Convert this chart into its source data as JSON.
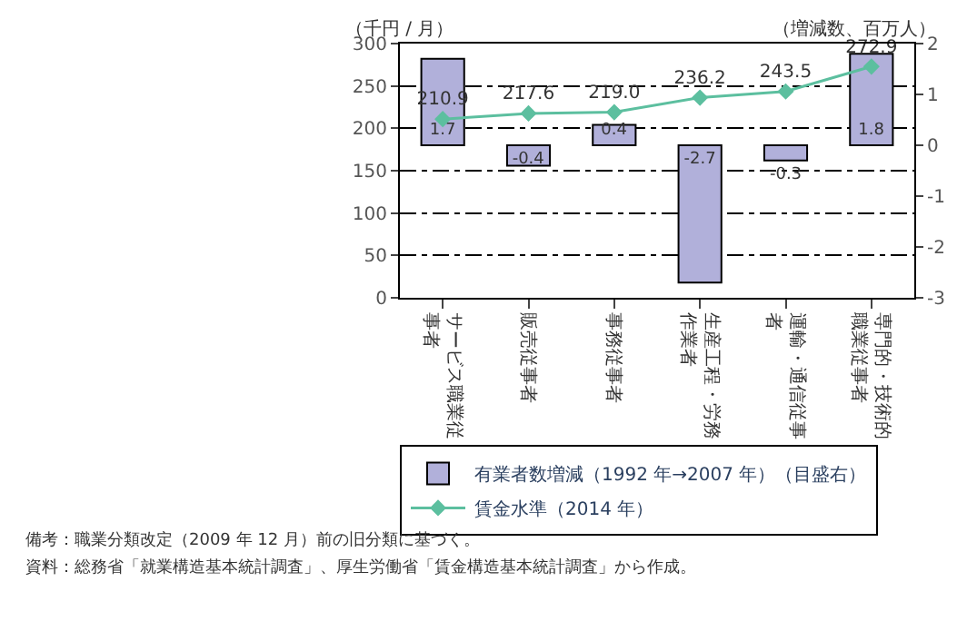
{
  "chart_data": {
    "type": "bar",
    "categories": [
      "サービス職業従事者",
      "販売従事者",
      "事務従事者",
      "生産工程・労務作業者",
      "運輸・通信従事者",
      "専門的・技術的職業従事者"
    ],
    "series": [
      {
        "name": "有業者数増減（1992 年→2007 年）（目盛右）",
        "axis": "y2",
        "color": "#b1b0da",
        "values": [
          1.7,
          -0.4,
          0.4,
          -2.7,
          -0.3,
          1.8
        ]
      },
      {
        "name": "賃金水準（2014 年）",
        "type": "line",
        "axis": "y",
        "color": "#5cbf9f",
        "marker": "diamond",
        "values": [
          210.9,
          217.6,
          219.0,
          236.2,
          243.5,
          272.9
        ],
        "value_labels": [
          "210.9",
          "217.6",
          "219.0",
          "236.2",
          "243.5",
          "272.9"
        ]
      }
    ],
    "ylabel": "（千円 / 月）",
    "y2label": "（増減数、百万人）",
    "ylim": [
      0,
      300
    ],
    "yticks": [
      0,
      50,
      100,
      150,
      200,
      250,
      300
    ],
    "y2lim": [
      -3,
      2
    ],
    "y2ticks": [
      -3,
      -2,
      -1,
      0,
      1,
      2
    ],
    "grid": "y",
    "legend": "bottom",
    "data_labels": true,
    "annotations": [
      "備考：職業分類改定（2009 年 12 月）前の旧分類に基づく。",
      "資料：総務省「就業構造基本統計調査」、厚生労働省「賃金構造基本統計調査」から作成。"
    ]
  }
}
